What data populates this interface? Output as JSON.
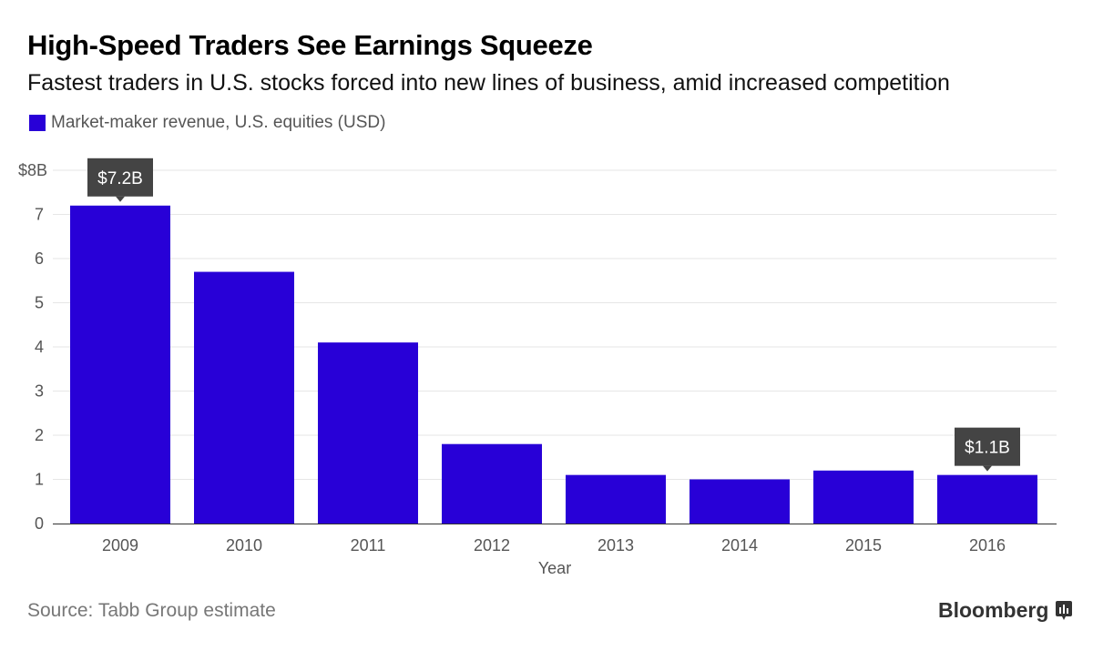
{
  "chart_data": {
    "type": "bar",
    "title": "High-Speed Traders See Earnings Squeeze",
    "subtitle": "Fastest traders in U.S. stocks forced into new lines of business, amid increased competition",
    "legend": [
      {
        "name": "Market-maker revenue, U.S. equities (USD)",
        "color": "#2800d7"
      }
    ],
    "legend_placement": "top-left",
    "categories": [
      "2009",
      "2010",
      "2011",
      "2012",
      "2013",
      "2014",
      "2015",
      "2016"
    ],
    "series": [
      {
        "name": "Market-maker revenue, U.S. equities (USD)",
        "values": [
          7.2,
          5.7,
          4.1,
          1.8,
          1.1,
          1.0,
          1.2,
          1.1
        ]
      }
    ],
    "xlabel": "Year",
    "ylabel": "",
    "ylim": [
      0,
      8
    ],
    "yticks": [
      "0",
      "1",
      "2",
      "3",
      "4",
      "5",
      "6",
      "7",
      "$8B"
    ],
    "grid": true,
    "annotations": [
      {
        "category": "2009",
        "text": "$7.2B"
      },
      {
        "category": "2016",
        "text": "$1.1B"
      }
    ]
  },
  "footer": {
    "source": "Source: Tabb Group estimate",
    "brand": "Bloomberg"
  },
  "colors": {
    "bar": "#2800d7",
    "annotation_bg": "#444444",
    "grid": "#e6e6e6"
  }
}
